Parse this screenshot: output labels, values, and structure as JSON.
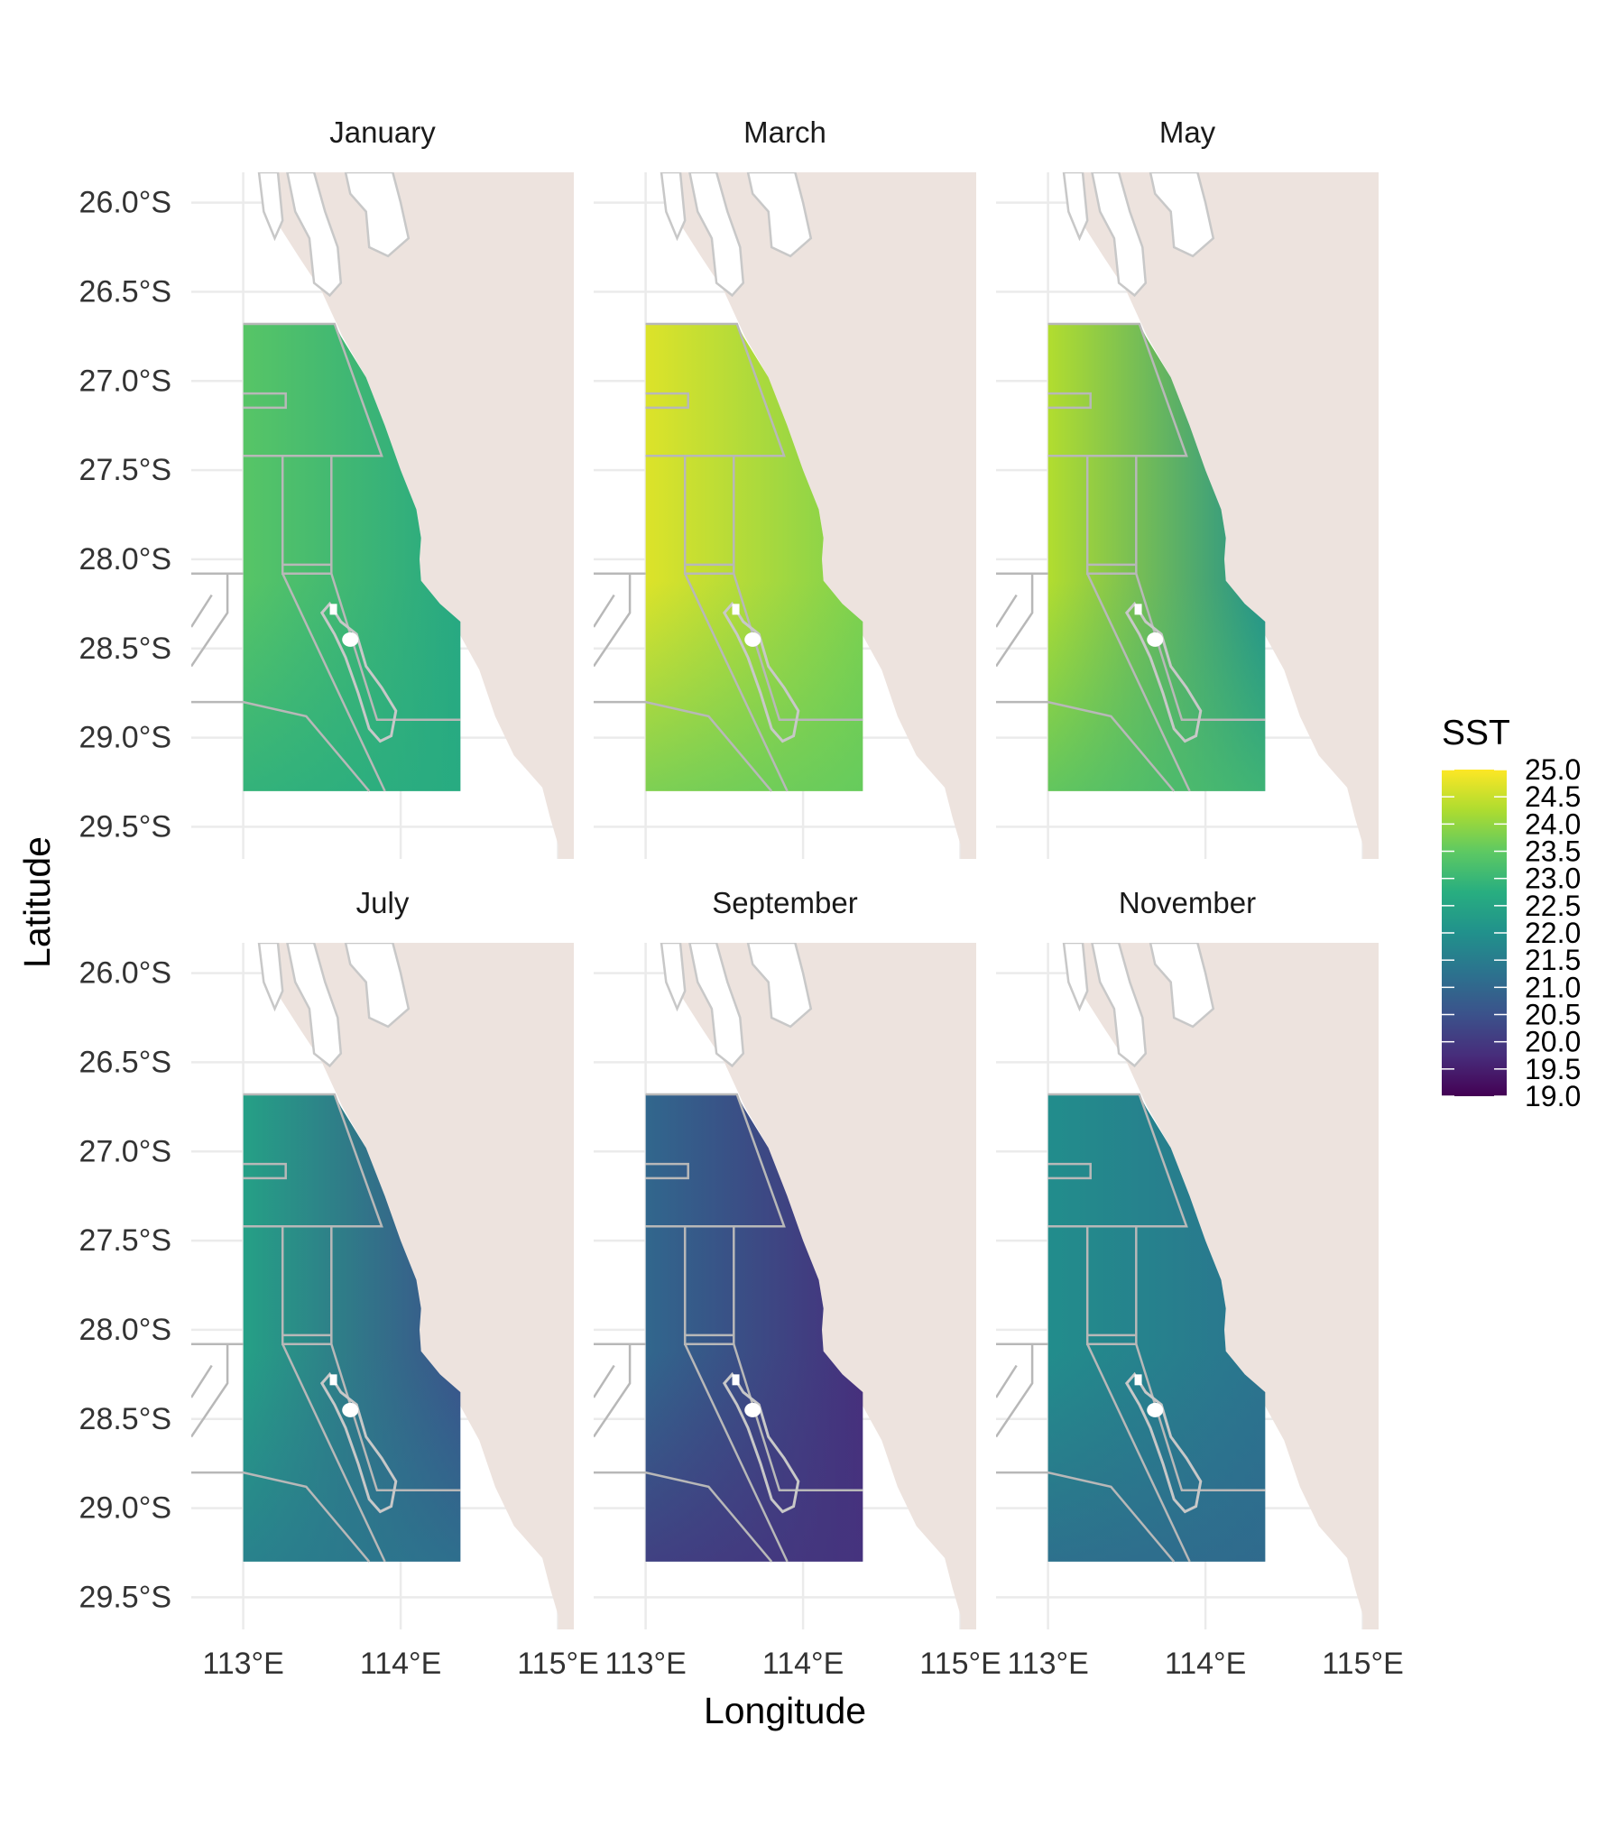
{
  "chart_data": {
    "type": "heatmap",
    "xlabel": "Longitude",
    "ylabel": "Latitude",
    "x_ticks": [
      "113°E",
      "114°E",
      "115°E"
    ],
    "x_tick_values": [
      113,
      114,
      115
    ],
    "y_ticks": [
      "26.0°S",
      "26.5°S",
      "27.0°S",
      "27.5°S",
      "28.0°S",
      "28.5°S",
      "29.0°S",
      "29.5°S"
    ],
    "y_tick_values": [
      -26.0,
      -26.5,
      -27.0,
      -27.5,
      -28.0,
      -28.5,
      -29.0,
      -29.5
    ],
    "xlim": [
      112.67,
      115.1
    ],
    "ylim": [
      -29.68,
      -25.83
    ],
    "grid": true,
    "legend": {
      "title": "SST",
      "placement": "right",
      "min": 19.0,
      "max": 25.0,
      "labels": [
        "25.0",
        "24.5",
        "24.0",
        "23.5",
        "23.0",
        "22.5",
        "22.0",
        "21.5",
        "21.0",
        "20.5",
        "20.0",
        "19.5",
        "19.0"
      ],
      "colormap": "viridis"
    },
    "panels": [
      {
        "name": "January",
        "sst_west": 23.4,
        "sst_east": 22.6,
        "sst_south": 22.7,
        "sst_min": 22.3,
        "sst_max": 23.5
      },
      {
        "name": "March",
        "sst_west": 24.7,
        "sst_east": 23.8,
        "sst_south": 23.5,
        "sst_min": 23.4,
        "sst_max": 24.8
      },
      {
        "name": "May",
        "sst_west": 24.3,
        "sst_east": 22.0,
        "sst_south": 23.2,
        "sst_min": 21.8,
        "sst_max": 24.5
      },
      {
        "name": "July",
        "sst_west": 22.4,
        "sst_east": 20.5,
        "sst_south": 21.4,
        "sst_min": 20.2,
        "sst_max": 22.6
      },
      {
        "name": "September",
        "sst_west": 21.0,
        "sst_east": 19.8,
        "sst_south": 19.9,
        "sst_min": 19.3,
        "sst_max": 21.2
      },
      {
        "name": "November",
        "sst_west": 21.9,
        "sst_east": 21.3,
        "sst_south": 21.0,
        "sst_min": 20.9,
        "sst_max": 22.0
      }
    ]
  },
  "colors": {
    "land": "#ede3de",
    "coast_outline": "#c8c8c8",
    "management_zones": "#b8b8b8",
    "gridlines": "#ebebeb",
    "text": "#333333"
  }
}
